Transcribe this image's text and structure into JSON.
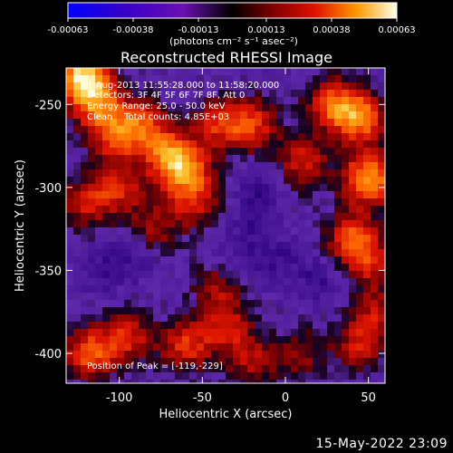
{
  "chart_data": {
    "type": "heatmap",
    "title": "Reconstructed RHESSI Image",
    "xlabel": "Heliocentric X (arcsec)",
    "ylabel": "Heliocentric Y (arcsec)",
    "xlim": [
      -132,
      60
    ],
    "ylim": [
      -418,
      -228
    ],
    "xticks": [
      -100,
      -50,
      0,
      50
    ],
    "xtick_labels": [
      "-100",
      "-50",
      "0",
      "50"
    ],
    "yticks": [
      -250,
      -300,
      -350,
      -400
    ],
    "ytick_labels": [
      "-250",
      "-300",
      "-350",
      "-400"
    ],
    "colorbar": {
      "range": [
        -0.00063,
        0.00063
      ],
      "ticks": [
        -0.00063,
        -0.00038,
        -0.00013,
        0.00013,
        0.00038,
        0.00063
      ],
      "tick_labels": [
        "-0.00063",
        "-0.00038",
        "-0.00013",
        "0.00013",
        "0.00038",
        "0.00063"
      ],
      "unit_label": "(photons cm⁻² s⁻¹ asec⁻²)"
    },
    "annotations": {
      "time_range": "1-Aug-2013 11:55:28.000 to 11:58:20.000",
      "detectors": "Detectors: 3F 4F 5F 6F 7F 8F, Att 0",
      "energy": "Energy Range: 25.0 - 50.0 keV",
      "method": "Clean    Total counts: 4.85E+03",
      "peak": "Position of Peak = [-119,-229]"
    },
    "peak_position": [
      -119,
      -229
    ],
    "hotspots": [
      {
        "x": -122,
        "y": -234,
        "v": 1.0
      },
      {
        "x": -112,
        "y": -252,
        "v": 0.55
      },
      {
        "x": -102,
        "y": -270,
        "v": 0.45
      },
      {
        "x": -86,
        "y": -262,
        "v": 0.5
      },
      {
        "x": -72,
        "y": -282,
        "v": 0.75
      },
      {
        "x": -58,
        "y": -290,
        "v": 0.55
      },
      {
        "x": -40,
        "y": -262,
        "v": 0.45
      },
      {
        "x": -20,
        "y": -262,
        "v": 0.5
      },
      {
        "x": 10,
        "y": -285,
        "v": 0.45
      },
      {
        "x": 28,
        "y": -250,
        "v": 0.55
      },
      {
        "x": 45,
        "y": -258,
        "v": 0.7
      },
      {
        "x": 50,
        "y": -295,
        "v": 0.8
      },
      {
        "x": 40,
        "y": -330,
        "v": 0.55
      },
      {
        "x": 52,
        "y": -345,
        "v": 0.4
      },
      {
        "x": -120,
        "y": -310,
        "v": 0.4
      },
      {
        "x": -100,
        "y": -300,
        "v": 0.45
      },
      {
        "x": -80,
        "y": -325,
        "v": 0.35
      },
      {
        "x": -55,
        "y": -310,
        "v": 0.4
      },
      {
        "x": -40,
        "y": -360,
        "v": 0.35
      },
      {
        "x": -118,
        "y": -400,
        "v": 0.6
      },
      {
        "x": -95,
        "y": -390,
        "v": 0.45
      },
      {
        "x": -60,
        "y": -395,
        "v": 0.5
      },
      {
        "x": -35,
        "y": -385,
        "v": 0.4
      },
      {
        "x": -20,
        "y": -405,
        "v": 0.35
      },
      {
        "x": 10,
        "y": -400,
        "v": 0.3
      },
      {
        "x": 45,
        "y": -395,
        "v": 0.4
      },
      {
        "x": 55,
        "y": -375,
        "v": 0.35
      }
    ]
  },
  "footer": {
    "timestamp": "15-May-2022 23:09"
  }
}
